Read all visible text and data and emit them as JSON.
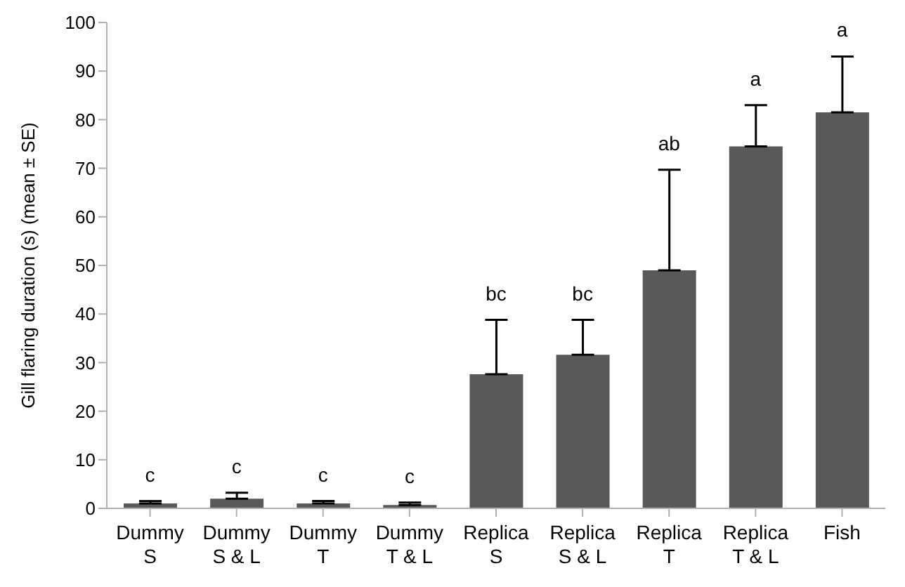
{
  "chart_data": {
    "type": "bar",
    "ylabel": "Gill flaring duration (s) (mean ± SE)",
    "categories": [
      "Dummy S",
      "Dummy S & L",
      "Dummy T",
      "Dummy T & L",
      "Replica S",
      "Replica S & L",
      "Replica T",
      "Replica T & L",
      "Fish"
    ],
    "values": [
      1,
      2,
      1,
      0.7,
      27.6,
      31.6,
      49,
      74.5,
      81.5
    ],
    "errors": [
      0.5,
      1.2,
      0.5,
      0.5,
      11.2,
      7.2,
      20.7,
      8.5,
      11.5
    ],
    "color": "#595959",
    "ylim": [
      0,
      100
    ],
    "yticks": [
      0,
      10,
      20,
      30,
      40,
      50,
      60,
      70,
      80,
      90,
      100
    ],
    "grid": false,
    "legend": false,
    "annotations": [
      {
        "text": "c",
        "x": "Dummy S",
        "y": 1.5
      },
      {
        "text": "c",
        "x": "Dummy S & L",
        "y": 3.2
      },
      {
        "text": "c",
        "x": "Dummy T",
        "y": 1.5
      },
      {
        "text": "c",
        "x": "Dummy T & L",
        "y": 1.2
      },
      {
        "text": "bc",
        "x": "Replica S",
        "y": 38.8
      },
      {
        "text": "bc",
        "x": "Replica S & L",
        "y": 38.8
      },
      {
        "text": "ab",
        "x": "Replica T",
        "y": 69.7
      },
      {
        "text": "a",
        "x": "Replica T & L",
        "y": 83
      },
      {
        "text": "a",
        "x": "Fish",
        "y": 93
      }
    ]
  }
}
